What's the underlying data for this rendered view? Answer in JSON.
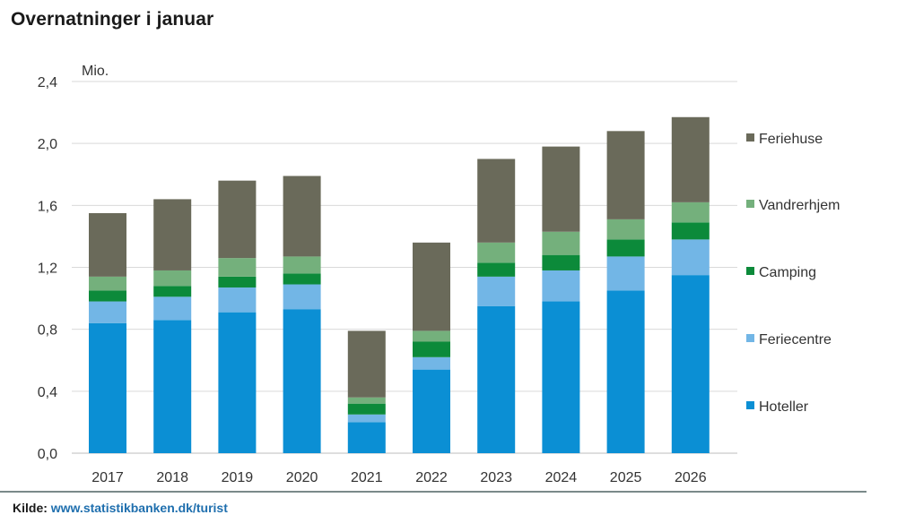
{
  "chart_data": {
    "type": "bar",
    "stacked": true,
    "title": "Overnatninger i januar",
    "unit_label": "Mio.",
    "ylim": [
      0,
      2.4
    ],
    "yticks": [
      "0,0",
      "0,4",
      "0,8",
      "1,2",
      "1,6",
      "2,0",
      "2,4"
    ],
    "ytick_values": [
      0,
      0.4,
      0.8,
      1.2,
      1.6,
      2.0,
      2.4
    ],
    "grid": true,
    "legend_position": "right",
    "categories": [
      "2017",
      "2018",
      "2019",
      "2020",
      "2021",
      "2022",
      "2023",
      "2024",
      "2025",
      "2026"
    ],
    "series": [
      {
        "name": "Hoteller",
        "color": "#0b8fd4",
        "values": [
          0.84,
          0.86,
          0.91,
          0.93,
          0.2,
          0.54,
          0.95,
          0.98,
          1.05,
          1.15
        ]
      },
      {
        "name": "Feriecentre",
        "color": "#72b6e6",
        "values": [
          0.14,
          0.15,
          0.16,
          0.16,
          0.05,
          0.08,
          0.19,
          0.2,
          0.22,
          0.23
        ]
      },
      {
        "name": "Camping",
        "color": "#0c8a3a",
        "values": [
          0.07,
          0.07,
          0.07,
          0.07,
          0.07,
          0.1,
          0.09,
          0.1,
          0.11,
          0.11
        ]
      },
      {
        "name": "Vandrerhjem",
        "color": "#74b07c",
        "values": [
          0.09,
          0.1,
          0.12,
          0.11,
          0.04,
          0.07,
          0.13,
          0.15,
          0.13,
          0.13
        ]
      },
      {
        "name": "Feriehuse",
        "color": "#6a6a5a",
        "values": [
          0.41,
          0.46,
          0.5,
          0.52,
          0.43,
          0.57,
          0.54,
          0.55,
          0.57,
          0.55
        ]
      }
    ]
  },
  "source": {
    "label": "Kilde:",
    "link": "www.statistikbanken.dk/turist"
  }
}
